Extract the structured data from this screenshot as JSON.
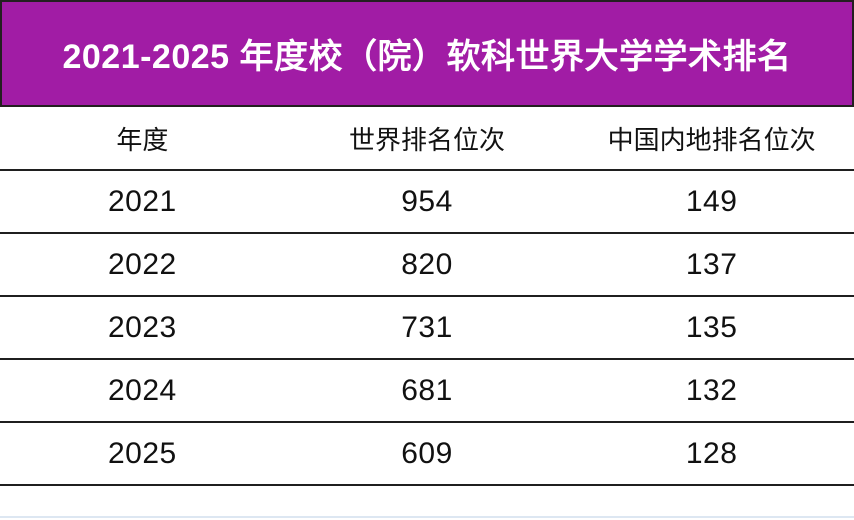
{
  "banner": {
    "title": "2021-2025 年度校（院）软科世界大学学术排名",
    "bg_color": "#A11CA5",
    "border_color": "#231f20",
    "text_color": "#FFFFFF"
  },
  "table": {
    "columns": [
      "年度",
      "世界排名位次",
      "中国内地排名位次"
    ],
    "rows": [
      [
        "2021",
        "954",
        "149"
      ],
      [
        "2022",
        "820",
        "137"
      ],
      [
        "2023",
        "731",
        "135"
      ],
      [
        "2024",
        "681",
        "132"
      ],
      [
        "2025",
        "609",
        "128"
      ]
    ]
  },
  "chart_data": {
    "type": "table",
    "title": "2021-2025 年度校（院）软科世界大学学术排名",
    "categories": [
      "2021",
      "2022",
      "2023",
      "2024",
      "2025"
    ],
    "series": [
      {
        "name": "世界排名位次",
        "values": [
          954,
          820,
          731,
          681,
          609
        ]
      },
      {
        "name": "中国内地排名位次",
        "values": [
          149,
          137,
          135,
          132,
          128
        ]
      }
    ],
    "layout_hints": {
      "header_row": [
        "年度",
        "世界排名位次",
        "中国内地排名位次"
      ],
      "grid": "horizontal-rules-only",
      "accent_color": "#A11CA5"
    }
  }
}
